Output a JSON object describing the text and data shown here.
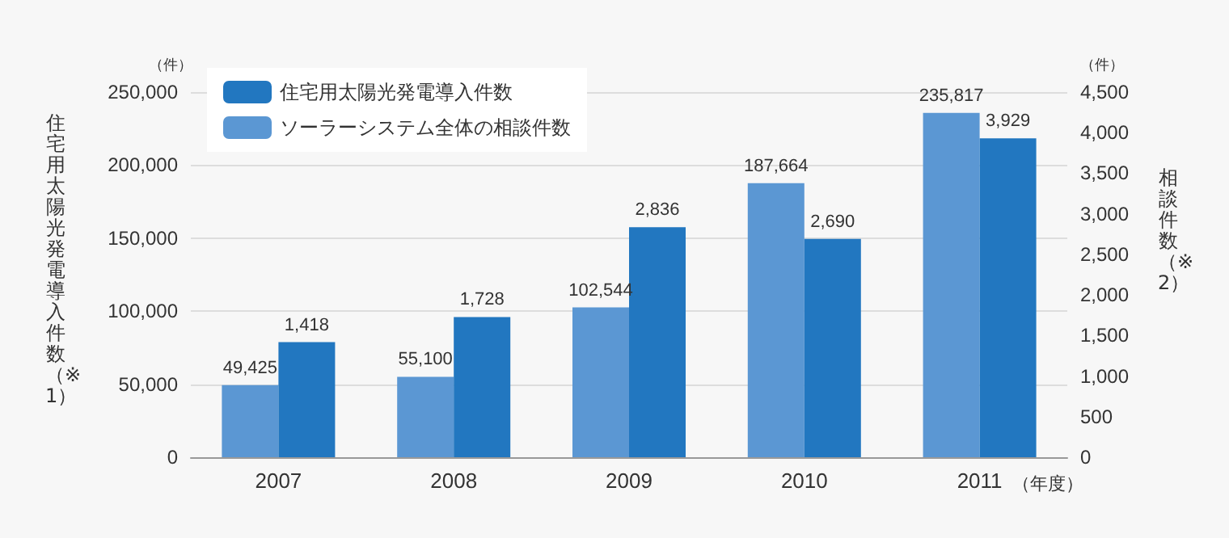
{
  "chart_data": {
    "type": "bar",
    "categories": [
      "2007",
      "2008",
      "2009",
      "2010",
      "2011"
    ],
    "series": [
      {
        "name": "住宅用太陽光発電導入件数",
        "color": "#2277c0",
        "axis": "y2",
        "values": [
          1418,
          1728,
          2836,
          2690,
          3929
        ],
        "value_labels": [
          "1,418",
          "1,728",
          "2,836",
          "2,690",
          "3,929"
        ]
      },
      {
        "name": "ソーラーシステム全体の相談件数",
        "color": "#5b97d3",
        "values": [
          49425,
          55100,
          102544,
          187664,
          235817
        ],
        "value_labels": [
          "49,425",
          "55,100",
          "102,544",
          "187,664",
          "235,817"
        ]
      }
    ],
    "ylabel": "住宅用太陽光発電導入件数（※1）",
    "y2label": "相談件数（※2）",
    "ylim": [
      0,
      250000
    ],
    "yticks": [
      0,
      {
        "value": 50000,
        "label": "50,000"
      },
      {
        "value": 100000,
        "label": "100,000"
      },
      {
        "value": 150000,
        "label": "150,000"
      },
      {
        "value": 200000,
        "label": "200,000"
      },
      {
        "value": 250000,
        "label": "250,000"
      }
    ],
    "y2lim": [
      0,
      4500
    ],
    "y2ticks": [
      0,
      500,
      {
        "value": 1000,
        "label": "1,000"
      },
      {
        "value": 1500,
        "label": "1,500"
      },
      {
        "value": 2000,
        "label": "2,000"
      },
      {
        "value": 2500,
        "label": "2,500"
      },
      {
        "value": 3000,
        "label": "3,000"
      },
      {
        "value": 3500,
        "label": "3,500"
      },
      {
        "value": 4000,
        "label": "4,000"
      },
      {
        "value": 4500,
        "label": "4,500"
      }
    ],
    "annotations": [
      "（件）",
      "（件）",
      "（年度）"
    ],
    "grid": "y",
    "legend": "top left"
  }
}
